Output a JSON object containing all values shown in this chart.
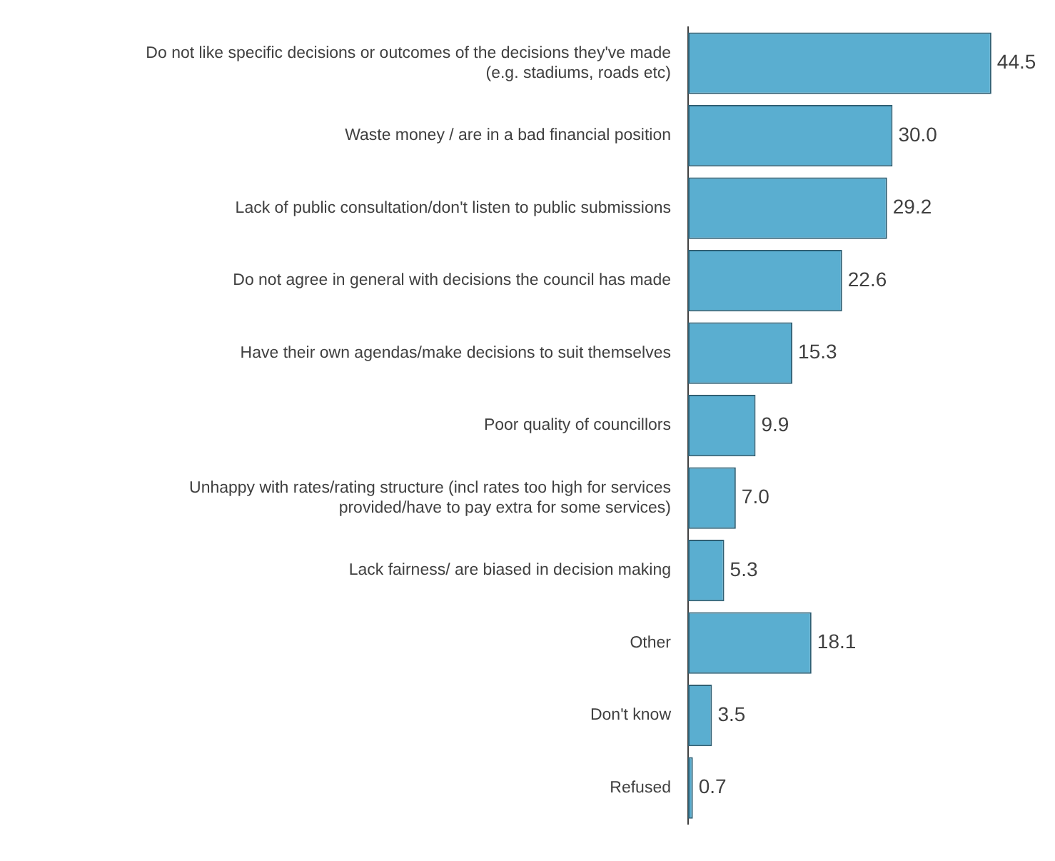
{
  "chart_data": {
    "type": "bar",
    "orientation": "horizontal",
    "categories": [
      "Do not like specific decisions or outcomes of the decisions they've made (e.g. stadiums, roads etc)",
      "Waste money / are in a bad financial position",
      "Lack of public consultation/don't listen to public submissions",
      "Do not agree in general with decisions the council has made",
      "Have their own agendas/make decisions to suit themselves",
      "Poor quality of councillors",
      "Unhappy with rates/rating structure (incl rates too high for services provided/have to pay extra for some services)",
      "Lack fairness/ are biased in decision making",
      "Other",
      "Don't know",
      "Refused"
    ],
    "values": [
      44.5,
      30.0,
      29.2,
      22.6,
      15.3,
      9.9,
      7.0,
      5.3,
      18.1,
      3.5,
      0.7
    ],
    "value_labels": [
      "44.5",
      "30.0",
      "29.2",
      "22.6",
      "15.3",
      "9.9",
      "7.0",
      "5.3",
      "18.1",
      "3.5",
      "0.7"
    ],
    "color": "#5aaed0",
    "grid": false,
    "legend": false,
    "tick_labels": "y"
  }
}
